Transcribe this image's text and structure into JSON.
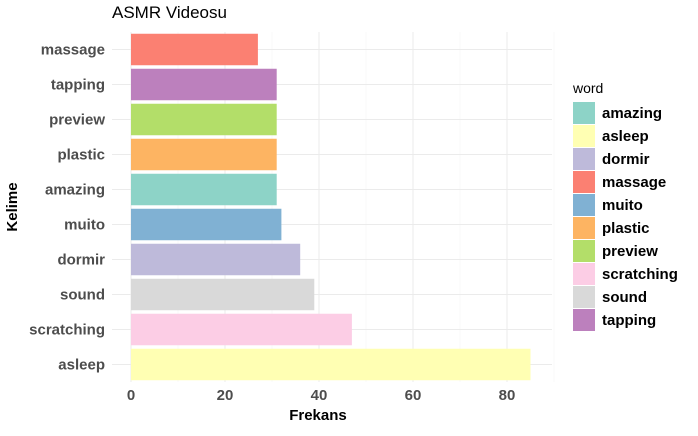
{
  "chart_data": {
    "type": "bar",
    "orientation": "horizontal",
    "title": "ASMR Videosu",
    "xlabel": "Frekans",
    "ylabel": "Kelime",
    "xlim": [
      0,
      90
    ],
    "x_ticks": [
      0,
      20,
      40,
      60,
      80
    ],
    "grid": true,
    "legend_position": "right",
    "legend_title": "word",
    "categories": [
      "asleep",
      "scratching",
      "sound",
      "dormir",
      "muito",
      "amazing",
      "plastic",
      "preview",
      "tapping",
      "massage"
    ],
    "values": [
      85,
      47,
      39,
      36,
      32,
      31,
      31,
      31,
      31,
      27
    ],
    "colors": {
      "amazing": "#8DD3C7",
      "asleep": "#FFFFB3",
      "dormir": "#BEBADA",
      "massage": "#FB8072",
      "muito": "#80B1D3",
      "plastic": "#FDB462",
      "preview": "#B3DE69",
      "scratching": "#FCCDE5",
      "sound": "#D9D9D9",
      "tapping": "#BC80BD"
    },
    "legend_entries": [
      "amazing",
      "asleep",
      "dormir",
      "massage",
      "muito",
      "plastic",
      "preview",
      "scratching",
      "sound",
      "tapping"
    ]
  }
}
